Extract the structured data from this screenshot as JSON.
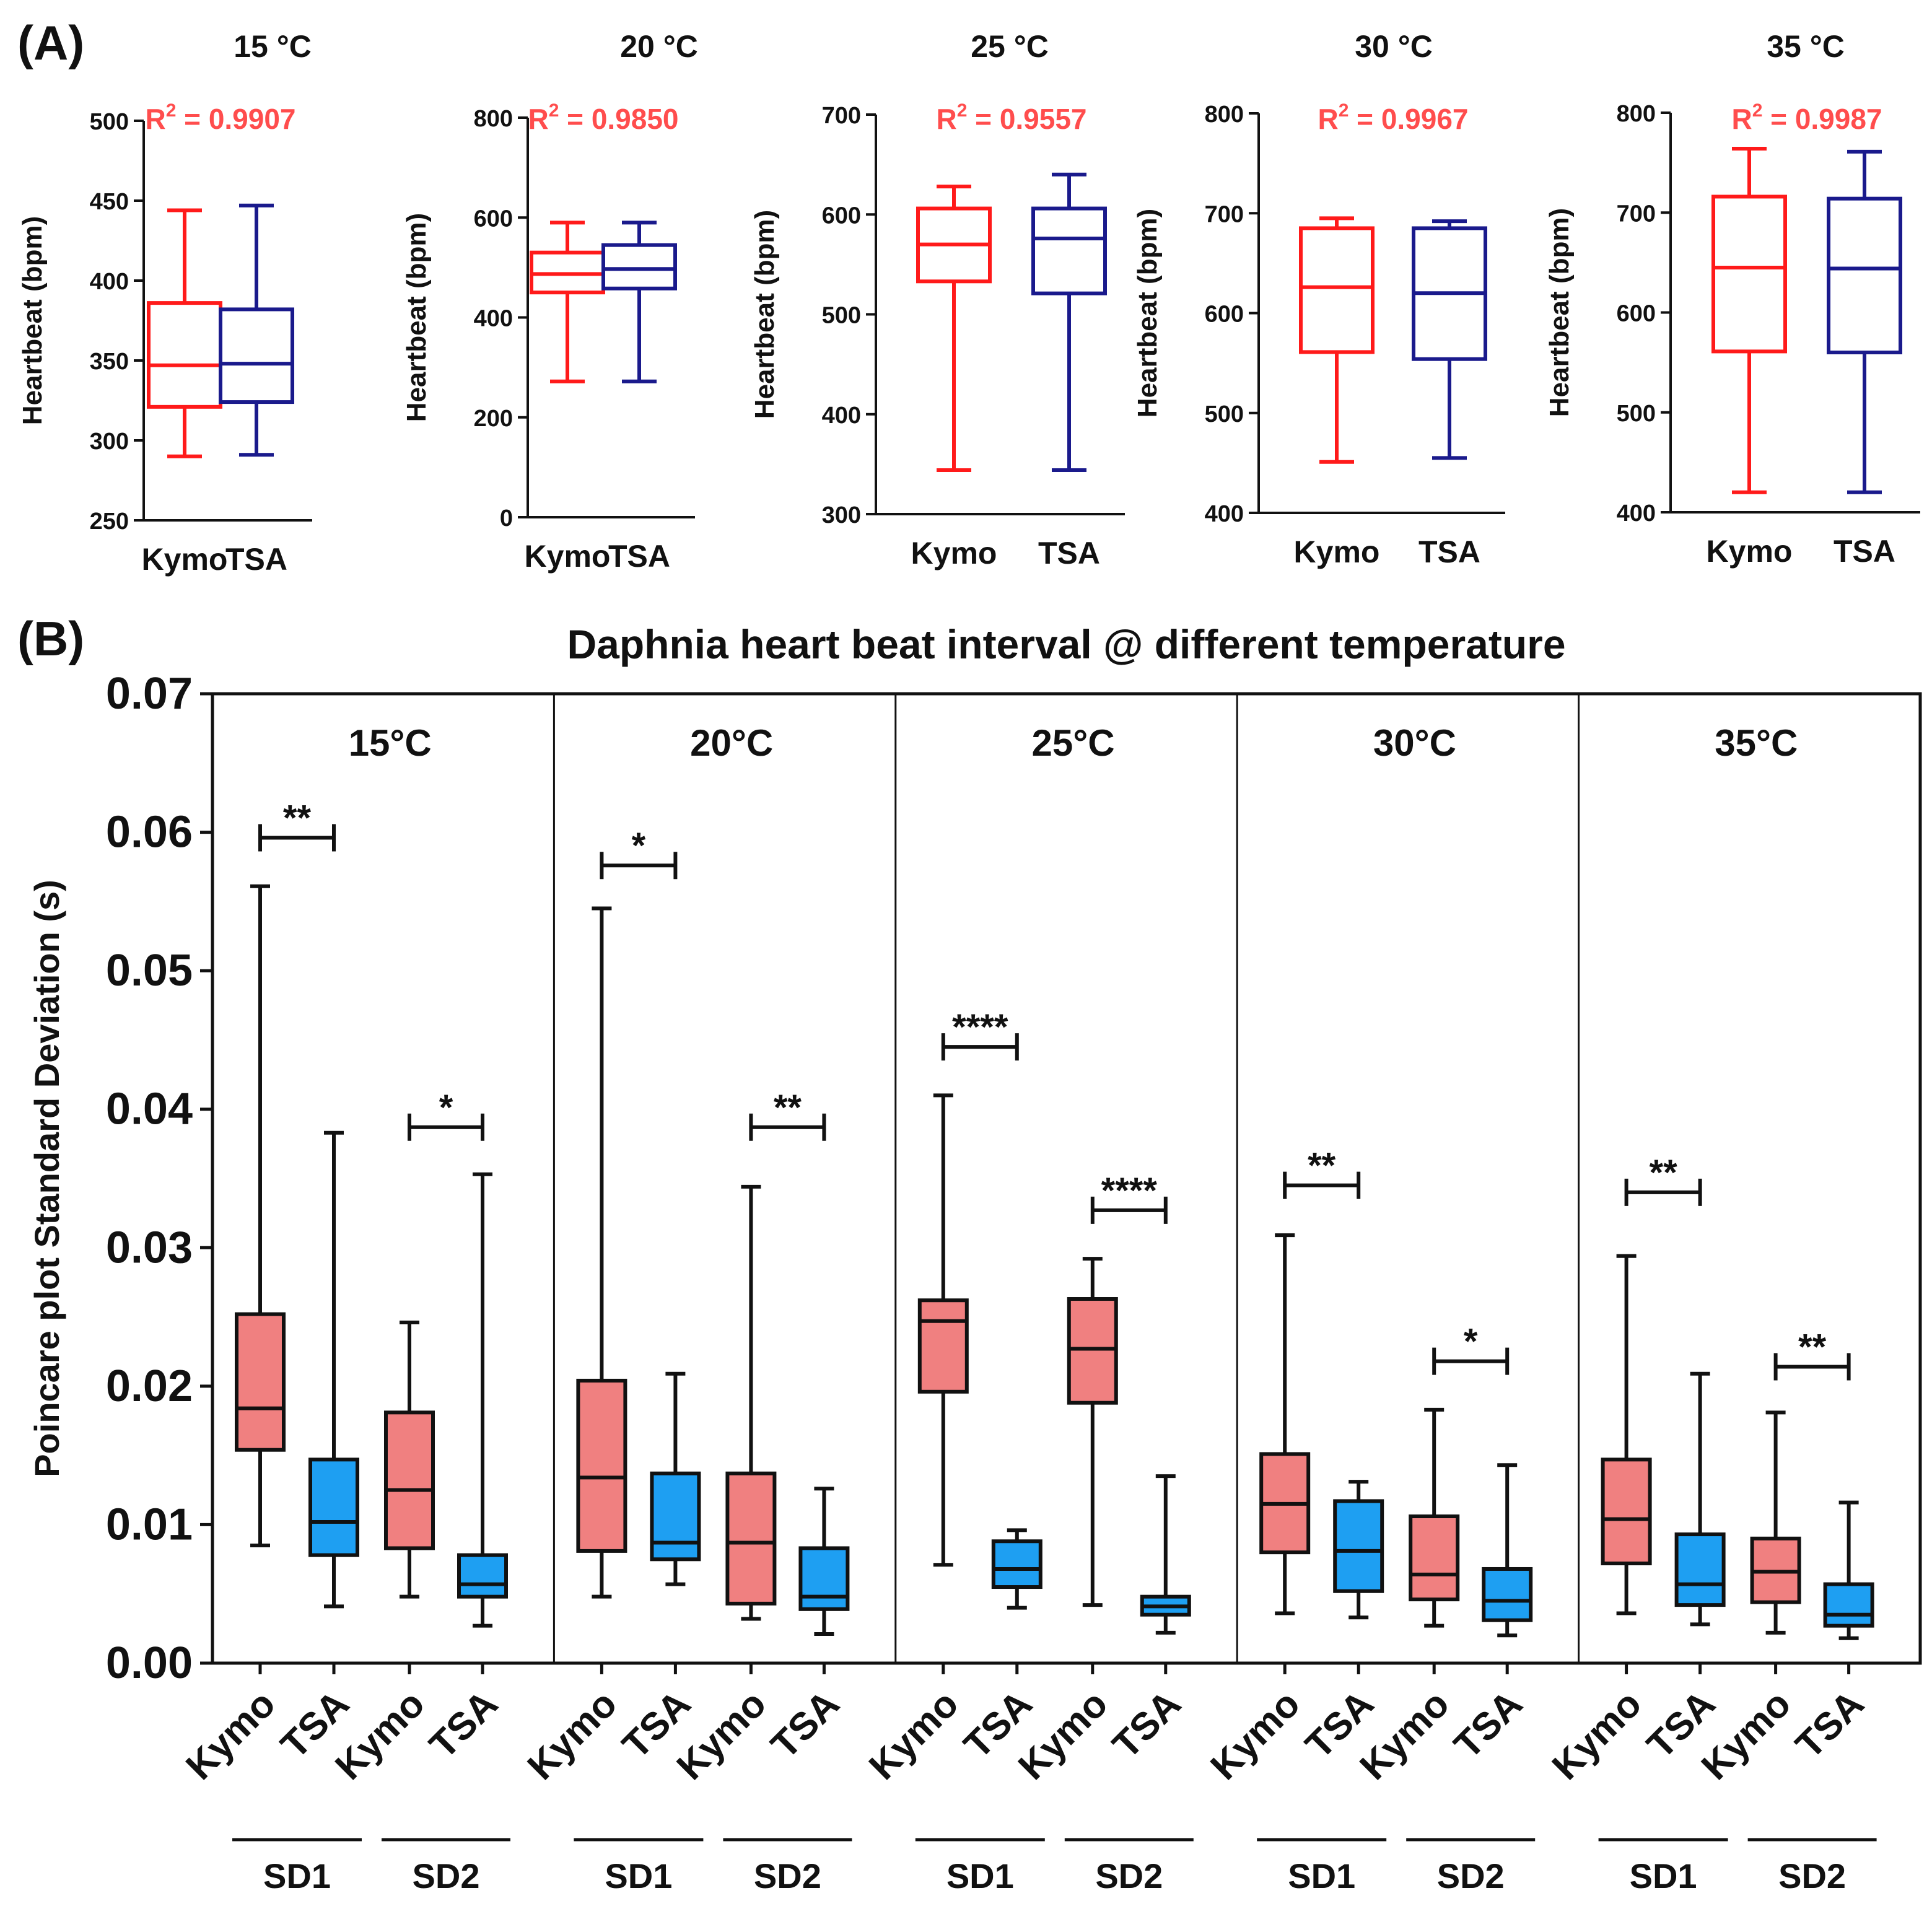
{
  "panel_a_label": "(A)",
  "panel_b_label": "(B)",
  "colors": {
    "kymo_line": "#ff1a1a",
    "tsa_line": "#1a1a8c",
    "r2_text": "#ff4d4d",
    "kymo_fill": "#f08080",
    "tsa_fill": "#1e9ff2",
    "ink": "#111111"
  },
  "chart_data": [
    {
      "type": "box",
      "panel": "A",
      "title": "15 °C",
      "ylabel": "Heartbeat (bpm)",
      "ylim": [
        250,
        500
      ],
      "yticks": [
        250,
        300,
        350,
        400,
        450,
        500
      ],
      "r2_label": "R",
      "r2_exp": "2",
      "r2_value": " = 0.9907",
      "categories": [
        "Kymo",
        "TSA"
      ],
      "boxes": [
        {
          "group": "Kymo",
          "min": 290,
          "q1": 321,
          "median": 347,
          "q3": 386,
          "max": 444
        },
        {
          "group": "TSA",
          "min": 291,
          "q1": 324,
          "median": 348,
          "q3": 382,
          "max": 447
        }
      ]
    },
    {
      "type": "box",
      "panel": "A",
      "title": "20 °C",
      "ylabel": "Heartbeat (bpm)",
      "ylim": [
        0,
        800
      ],
      "yticks": [
        0,
        200,
        400,
        600,
        800
      ],
      "r2_label": "R",
      "r2_exp": "2",
      "r2_value": " = 0.9850",
      "categories": [
        "Kymo",
        "TSA"
      ],
      "boxes": [
        {
          "group": "Kymo",
          "min": 272,
          "q1": 450,
          "median": 487,
          "q3": 530,
          "max": 590
        },
        {
          "group": "TSA",
          "min": 272,
          "q1": 458,
          "median": 497,
          "q3": 545,
          "max": 590
        }
      ]
    },
    {
      "type": "box",
      "panel": "A",
      "title": "25 °C",
      "ylabel": "Heartbeat (bpm)",
      "ylim": [
        300,
        700
      ],
      "yticks": [
        300,
        400,
        500,
        600,
        700
      ],
      "r2_label": "R",
      "r2_exp": "2",
      "r2_value": " = 0.9557",
      "categories": [
        "Kymo",
        "TSA"
      ],
      "boxes": [
        {
          "group": "Kymo",
          "min": 344,
          "q1": 533,
          "median": 570,
          "q3": 606,
          "max": 628
        },
        {
          "group": "TSA",
          "min": 344,
          "q1": 521,
          "median": 576,
          "q3": 606,
          "max": 640
        }
      ]
    },
    {
      "type": "box",
      "panel": "A",
      "title": "30 °C",
      "ylabel": "Heartbeat (bpm)",
      "ylim": [
        400,
        800
      ],
      "yticks": [
        400,
        500,
        600,
        700,
        800
      ],
      "r2_label": "R",
      "r2_exp": "2",
      "r2_value": " = 0.9967",
      "categories": [
        "Kymo",
        "TSA"
      ],
      "boxes": [
        {
          "group": "Kymo",
          "min": 451,
          "q1": 561,
          "median": 626,
          "q3": 685,
          "max": 695
        },
        {
          "group": "TSA",
          "min": 455,
          "q1": 554,
          "median": 620,
          "q3": 685,
          "max": 692
        }
      ]
    },
    {
      "type": "box",
      "panel": "A",
      "title": "35 °C",
      "ylabel": "Heartbeat (bpm)",
      "ylim": [
        400,
        800
      ],
      "yticks": [
        400,
        500,
        600,
        700,
        800
      ],
      "r2_label": "R",
      "r2_exp": "2",
      "r2_value": " = 0.9987",
      "categories": [
        "Kymo",
        "TSA"
      ],
      "boxes": [
        {
          "group": "Kymo",
          "min": 420,
          "q1": 561,
          "median": 645,
          "q3": 716,
          "max": 764
        },
        {
          "group": "TSA",
          "min": 420,
          "q1": 560,
          "median": 644,
          "q3": 714,
          "max": 761
        }
      ]
    },
    {
      "type": "box",
      "panel": "B",
      "title": "Daphnia heart beat interval @ different temperature",
      "ylabel": "Poincare plot Standard Deviation (s)",
      "ylim": [
        0,
        0.07
      ],
      "yticks": [
        "0.00",
        "0.01",
        "0.02",
        "0.03",
        "0.04",
        "0.05",
        "0.06",
        "0.07"
      ],
      "x_tick_labels": [
        "Kymo",
        "TSA",
        "Kymo",
        "TSA"
      ],
      "groups": [
        "SD1",
        "SD2"
      ],
      "facets": [
        {
          "title": "15°C",
          "boxes": [
            {
              "metric": "SD1",
              "group": "Kymo",
              "min": 0.0085,
              "q1": 0.0154,
              "median": 0.0184,
              "q3": 0.0252,
              "max": 0.0561
            },
            {
              "metric": "SD1",
              "group": "TSA",
              "min": 0.0041,
              "q1": 0.0078,
              "median": 0.0102,
              "q3": 0.0147,
              "max": 0.0383
            },
            {
              "metric": "SD2",
              "group": "Kymo",
              "min": 0.0048,
              "q1": 0.0083,
              "median": 0.0125,
              "q3": 0.0181,
              "max": 0.0246
            },
            {
              "metric": "SD2",
              "group": "TSA",
              "min": 0.0027,
              "q1": 0.0048,
              "median": 0.0057,
              "q3": 0.0078,
              "max": 0.0353
            }
          ],
          "significance": [
            {
              "metric": "SD1",
              "label": "**",
              "y": 0.0596
            },
            {
              "metric": "SD2",
              "label": "*",
              "y": 0.0387
            }
          ]
        },
        {
          "title": "20°C",
          "boxes": [
            {
              "metric": "SD1",
              "group": "Kymo",
              "min": 0.0048,
              "q1": 0.0081,
              "median": 0.0134,
              "q3": 0.0204,
              "max": 0.0545
            },
            {
              "metric": "SD1",
              "group": "TSA",
              "min": 0.0057,
              "q1": 0.0075,
              "median": 0.0087,
              "q3": 0.0137,
              "max": 0.0209
            },
            {
              "metric": "SD2",
              "group": "Kymo",
              "min": 0.0032,
              "q1": 0.0043,
              "median": 0.0087,
              "q3": 0.0137,
              "max": 0.0344
            },
            {
              "metric": "SD2",
              "group": "TSA",
              "min": 0.0021,
              "q1": 0.0039,
              "median": 0.0048,
              "q3": 0.0083,
              "max": 0.0126
            }
          ],
          "significance": [
            {
              "metric": "SD1",
              "label": "*",
              "y": 0.0576
            },
            {
              "metric": "SD2",
              "label": "**",
              "y": 0.0387
            }
          ]
        },
        {
          "title": "25°C",
          "boxes": [
            {
              "metric": "SD1",
              "group": "Kymo",
              "min": 0.0071,
              "q1": 0.0196,
              "median": 0.0247,
              "q3": 0.0262,
              "max": 0.041
            },
            {
              "metric": "SD1",
              "group": "TSA",
              "min": 0.004,
              "q1": 0.0055,
              "median": 0.0068,
              "q3": 0.0088,
              "max": 0.0096
            },
            {
              "metric": "SD2",
              "group": "Kymo",
              "min": 0.0042,
              "q1": 0.0188,
              "median": 0.0227,
              "q3": 0.0263,
              "max": 0.0292
            },
            {
              "metric": "SD2",
              "group": "TSA",
              "min": 0.0022,
              "q1": 0.0035,
              "median": 0.0041,
              "q3": 0.0048,
              "max": 0.0135
            }
          ],
          "significance": [
            {
              "metric": "SD1",
              "label": "****",
              "y": 0.0445
            },
            {
              "metric": "SD2",
              "label": "****",
              "y": 0.0327
            }
          ]
        },
        {
          "title": "30°C",
          "boxes": [
            {
              "metric": "SD1",
              "group": "Kymo",
              "min": 0.0036,
              "q1": 0.008,
              "median": 0.0115,
              "q3": 0.0151,
              "max": 0.0309
            },
            {
              "metric": "SD1",
              "group": "TSA",
              "min": 0.0033,
              "q1": 0.0052,
              "median": 0.0081,
              "q3": 0.0117,
              "max": 0.0131
            },
            {
              "metric": "SD2",
              "group": "Kymo",
              "min": 0.0027,
              "q1": 0.0046,
              "median": 0.0064,
              "q3": 0.0106,
              "max": 0.0183
            },
            {
              "metric": "SD2",
              "group": "TSA",
              "min": 0.002,
              "q1": 0.0031,
              "median": 0.0045,
              "q3": 0.0068,
              "max": 0.0143
            }
          ],
          "significance": [
            {
              "metric": "SD1",
              "label": "**",
              "y": 0.0345
            },
            {
              "metric": "SD2",
              "label": "*",
              "y": 0.0218
            }
          ]
        },
        {
          "title": "35°C",
          "boxes": [
            {
              "metric": "SD1",
              "group": "Kymo",
              "min": 0.0036,
              "q1": 0.0072,
              "median": 0.0104,
              "q3": 0.0147,
              "max": 0.0294
            },
            {
              "metric": "SD1",
              "group": "TSA",
              "min": 0.0028,
              "q1": 0.0042,
              "median": 0.0057,
              "q3": 0.0093,
              "max": 0.0209
            },
            {
              "metric": "SD2",
              "group": "Kymo",
              "min": 0.0022,
              "q1": 0.0044,
              "median": 0.0066,
              "q3": 0.009,
              "max": 0.0181
            },
            {
              "metric": "SD2",
              "group": "TSA",
              "min": 0.0018,
              "q1": 0.0027,
              "median": 0.0035,
              "q3": 0.0057,
              "max": 0.0116
            }
          ],
          "significance": [
            {
              "metric": "SD1",
              "label": "**",
              "y": 0.034
            },
            {
              "metric": "SD2",
              "label": "**",
              "y": 0.0214
            }
          ]
        }
      ]
    }
  ]
}
